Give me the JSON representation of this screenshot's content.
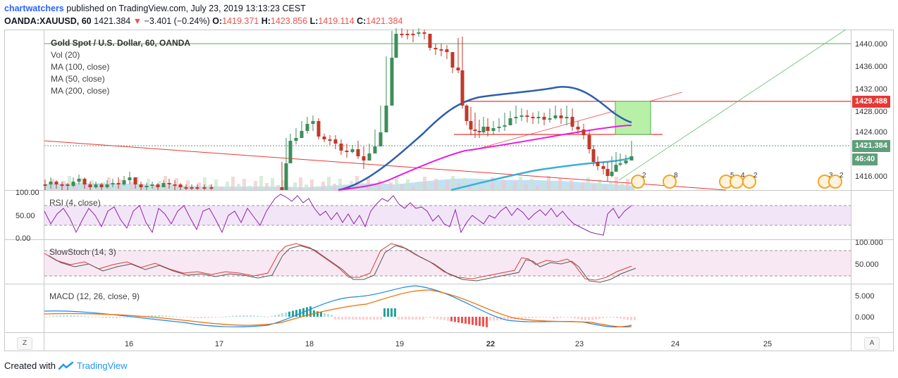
{
  "header": {
    "author": "chartwatchers",
    "published_text": "published on TradingView.com, July 23, 2019 13:13:23 CEST",
    "symbol_line": "OANDA:XAUUSD, 60",
    "last_price": "1421.384",
    "change": "−3.401 (−0.24%)",
    "ohlc": {
      "o_label": "O:",
      "o": "1419.371",
      "h_label": "H:",
      "h": "1423.856",
      "l_label": "L:",
      "l": "1419.114",
      "c_label": "C:",
      "c": "1421.384"
    }
  },
  "legend": {
    "title": "Gold Spot / U.S. Dollar, 60, OANDA",
    "items": [
      "Vol (20)",
      "MA (100, close)",
      "MA (50, close)",
      "MA (200, close)"
    ]
  },
  "panes": {
    "rsi_label": "RSI (4, close)",
    "stoch_label": "SlowStoch (14, 3)",
    "macd_label": "MACD (12, 26, close, 9)"
  },
  "price_axis": {
    "ticks": [
      "1440.000",
      "1436.000",
      "1432.000",
      "1428.000",
      "1424.000",
      "1416.000"
    ],
    "badge_resistance": "1429.488",
    "badge_last": "1421.384",
    "badge_timer": "46:40",
    "badge_colors": {
      "resistance": "#e53935",
      "last": "#5f9e7a",
      "timer": "#5f9e7a"
    }
  },
  "rsi_axis": {
    "ticks": [
      "100.00",
      "50.00",
      "0.00"
    ]
  },
  "stoch_axis": {
    "ticks": [
      "100.000",
      "50.000"
    ]
  },
  "macd_axis": {
    "ticks": [
      "5.000",
      "0.000"
    ]
  },
  "time_axis": {
    "ticks": [
      "16",
      "17",
      "18",
      "19",
      "22",
      "23",
      "24",
      "25"
    ]
  },
  "events": [
    "2",
    "8",
    "5",
    "4",
    "2",
    "3",
    "2"
  ],
  "nav": {
    "left": "Z",
    "right": "A"
  },
  "footer": {
    "created_with": "Created with",
    "brand": "TradingView"
  },
  "colors": {
    "up": "#3e8e5a",
    "down": "#c0392b",
    "ma100": "#e91ee0",
    "ma50": "#2e5fac",
    "ma200": "#3ab0d8",
    "rsi": "#8e24aa",
    "trendline": "#e53935",
    "green_line": "#4caf50"
  }
}
